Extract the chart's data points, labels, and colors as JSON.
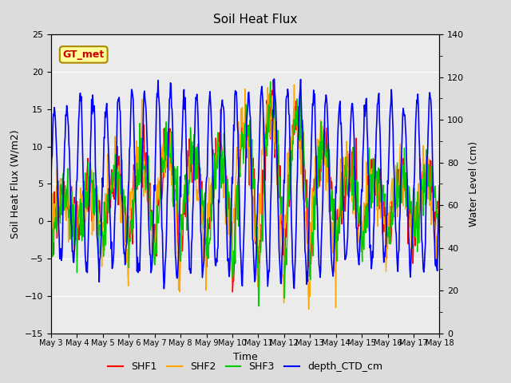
{
  "title": "Soil Heat Flux",
  "xlabel": "Time",
  "ylabel_left": "Soil Heat Flux (W/m2)",
  "ylabel_right": "Water Level (cm)",
  "annotation": "GT_met",
  "ylim_left": [
    -15,
    25
  ],
  "ylim_right": [
    0,
    140
  ],
  "yticks_left": [
    -15,
    -10,
    -5,
    0,
    5,
    10,
    15,
    20,
    25
  ],
  "yticks_right": [
    0,
    20,
    40,
    60,
    80,
    100,
    120,
    140
  ],
  "colors": {
    "SHF1": "#ff0000",
    "SHF2": "#ffa500",
    "SHF3": "#00cc00",
    "depth_CTD_cm": "#0000ff"
  },
  "legend_labels": [
    "SHF1",
    "SHF2",
    "SHF3",
    "depth_CTD_cm"
  ],
  "x_tick_labels": [
    "May 3",
    "May 4",
    "May 5",
    "May 6",
    "May 7",
    "May 8",
    "May 9",
    "May 10",
    "May 11",
    "May 12",
    "May 13",
    "May 14",
    "May 15",
    "May 16",
    "May 17",
    "May 18"
  ],
  "n_days": 15,
  "pts_per_day": 48,
  "background_color": "#dcdcdc",
  "plot_bg_color": "#ebebeb",
  "annotation_bg": "#ffff99",
  "annotation_border": "#aa8800",
  "grid_color": "#ffffff",
  "title_fontsize": 11,
  "label_fontsize": 9,
  "tick_fontsize": 8,
  "xtick_fontsize": 7,
  "legend_fontsize": 9,
  "linewidth_shf": 1.0,
  "linewidth_depth": 1.2
}
